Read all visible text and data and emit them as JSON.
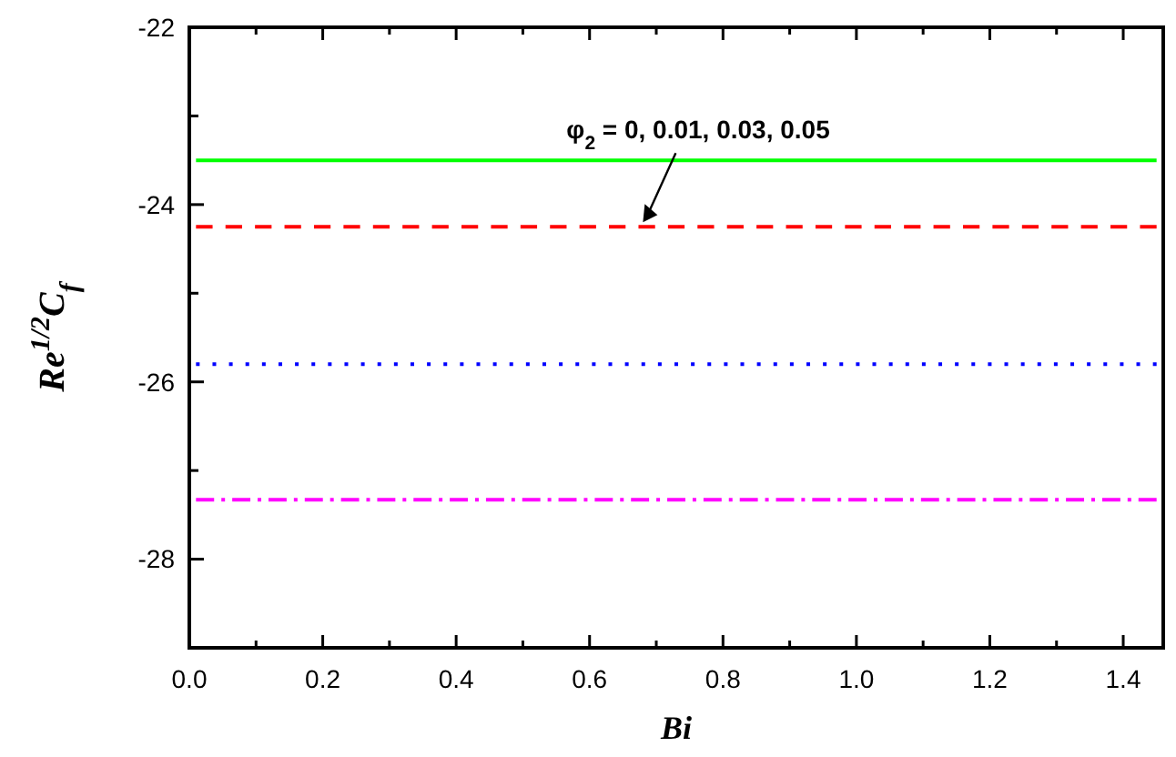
{
  "chart_data": {
    "type": "line",
    "xlabel": "Bi",
    "ylabel": "Re$^{1/2}$C$_{f}$",
    "x": [
      0.01,
      1.45
    ],
    "xlim": [
      0,
      1.46
    ],
    "ylim": [
      -29,
      -22
    ],
    "xticks": [
      {
        "value": 0,
        "label": "0.0"
      },
      0.2,
      0.4,
      0.6,
      0.8,
      {
        "value": 1,
        "label": "1.0"
      },
      1.2,
      1.4
    ],
    "yticks": [
      -22,
      -24,
      -26,
      -28
    ],
    "series": [
      {
        "color": "#00ff00",
        "line_style": "solid",
        "values": [
          -23.5,
          -23.5
        ]
      },
      {
        "color": "#ff0000",
        "line_style": "dashed",
        "values": [
          -24.25,
          -24.25
        ]
      },
      {
        "color": "#0000ff",
        "line_style": "dotted",
        "values": [
          -25.8,
          -25.8
        ]
      },
      {
        "color": "#ff00ff",
        "line_style": "dashdot",
        "values": [
          -27.33,
          -27.33
        ]
      }
    ],
    "annotations": [
      {
        "text": "φ$_{2}$ = 0, 0.01, 0.03, 0.05",
        "x": 0.68,
        "y": -24.2
      }
    ],
    "grid": false
  }
}
